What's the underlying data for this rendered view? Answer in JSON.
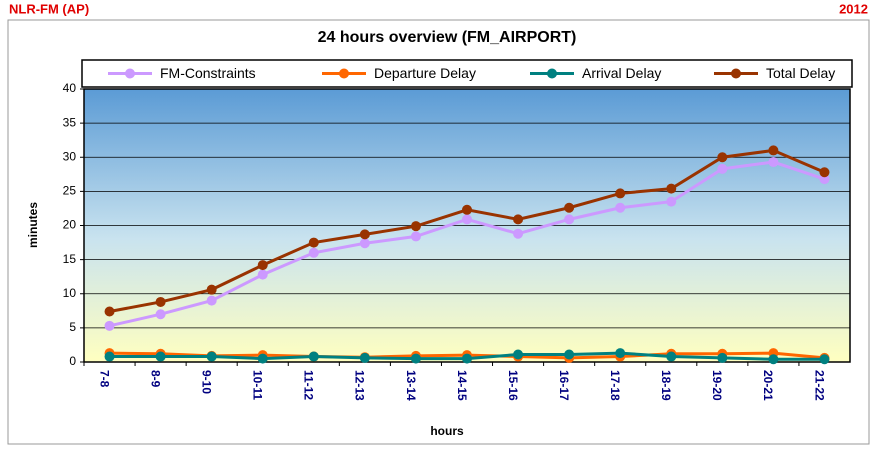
{
  "chart_data": {
    "type": "line",
    "corner_left_text": "NLR-FM (AP)",
    "corner_right_text": "2012",
    "title": "24 hours overview (FM_AIRPORT)",
    "x_label": "hours",
    "y_label": "minutes",
    "categories": [
      "7-8",
      "8-9",
      "9-10",
      "10-11",
      "11-12",
      "12-13",
      "13-14",
      "14-15",
      "15-16",
      "16-17",
      "17-18",
      "18-19",
      "19-20",
      "20-21",
      "21-22"
    ],
    "series": [
      {
        "name": "FM-Constraints",
        "color": "#cc99ff",
        "values": [
          5.3,
          7.0,
          9.0,
          12.8,
          16.0,
          17.4,
          18.4,
          20.9,
          18.8,
          20.9,
          22.6,
          23.5,
          28.3,
          29.3,
          26.8
        ]
      },
      {
        "name": "Departure Delay",
        "color": "#ff6600",
        "values": [
          1.3,
          1.2,
          0.9,
          1.0,
          0.8,
          0.7,
          0.9,
          1.0,
          0.8,
          0.6,
          0.8,
          1.2,
          1.2,
          1.3,
          0.6
        ]
      },
      {
        "name": "Arrival Delay",
        "color": "#008080",
        "values": [
          0.8,
          0.8,
          0.8,
          0.5,
          0.8,
          0.6,
          0.5,
          0.5,
          1.1,
          1.1,
          1.3,
          0.8,
          0.6,
          0.4,
          0.4
        ]
      },
      {
        "name": "Total Delay",
        "color": "#993300",
        "values": [
          7.4,
          8.8,
          10.6,
          14.2,
          17.5,
          18.7,
          19.9,
          22.3,
          20.9,
          22.6,
          24.7,
          25.4,
          30.0,
          31.0,
          27.8
        ]
      }
    ],
    "ylim": [
      0,
      40
    ],
    "yticks": [
      0,
      5,
      10,
      15,
      20,
      25,
      30,
      35,
      40
    ],
    "grid": true,
    "legend": "top"
  }
}
